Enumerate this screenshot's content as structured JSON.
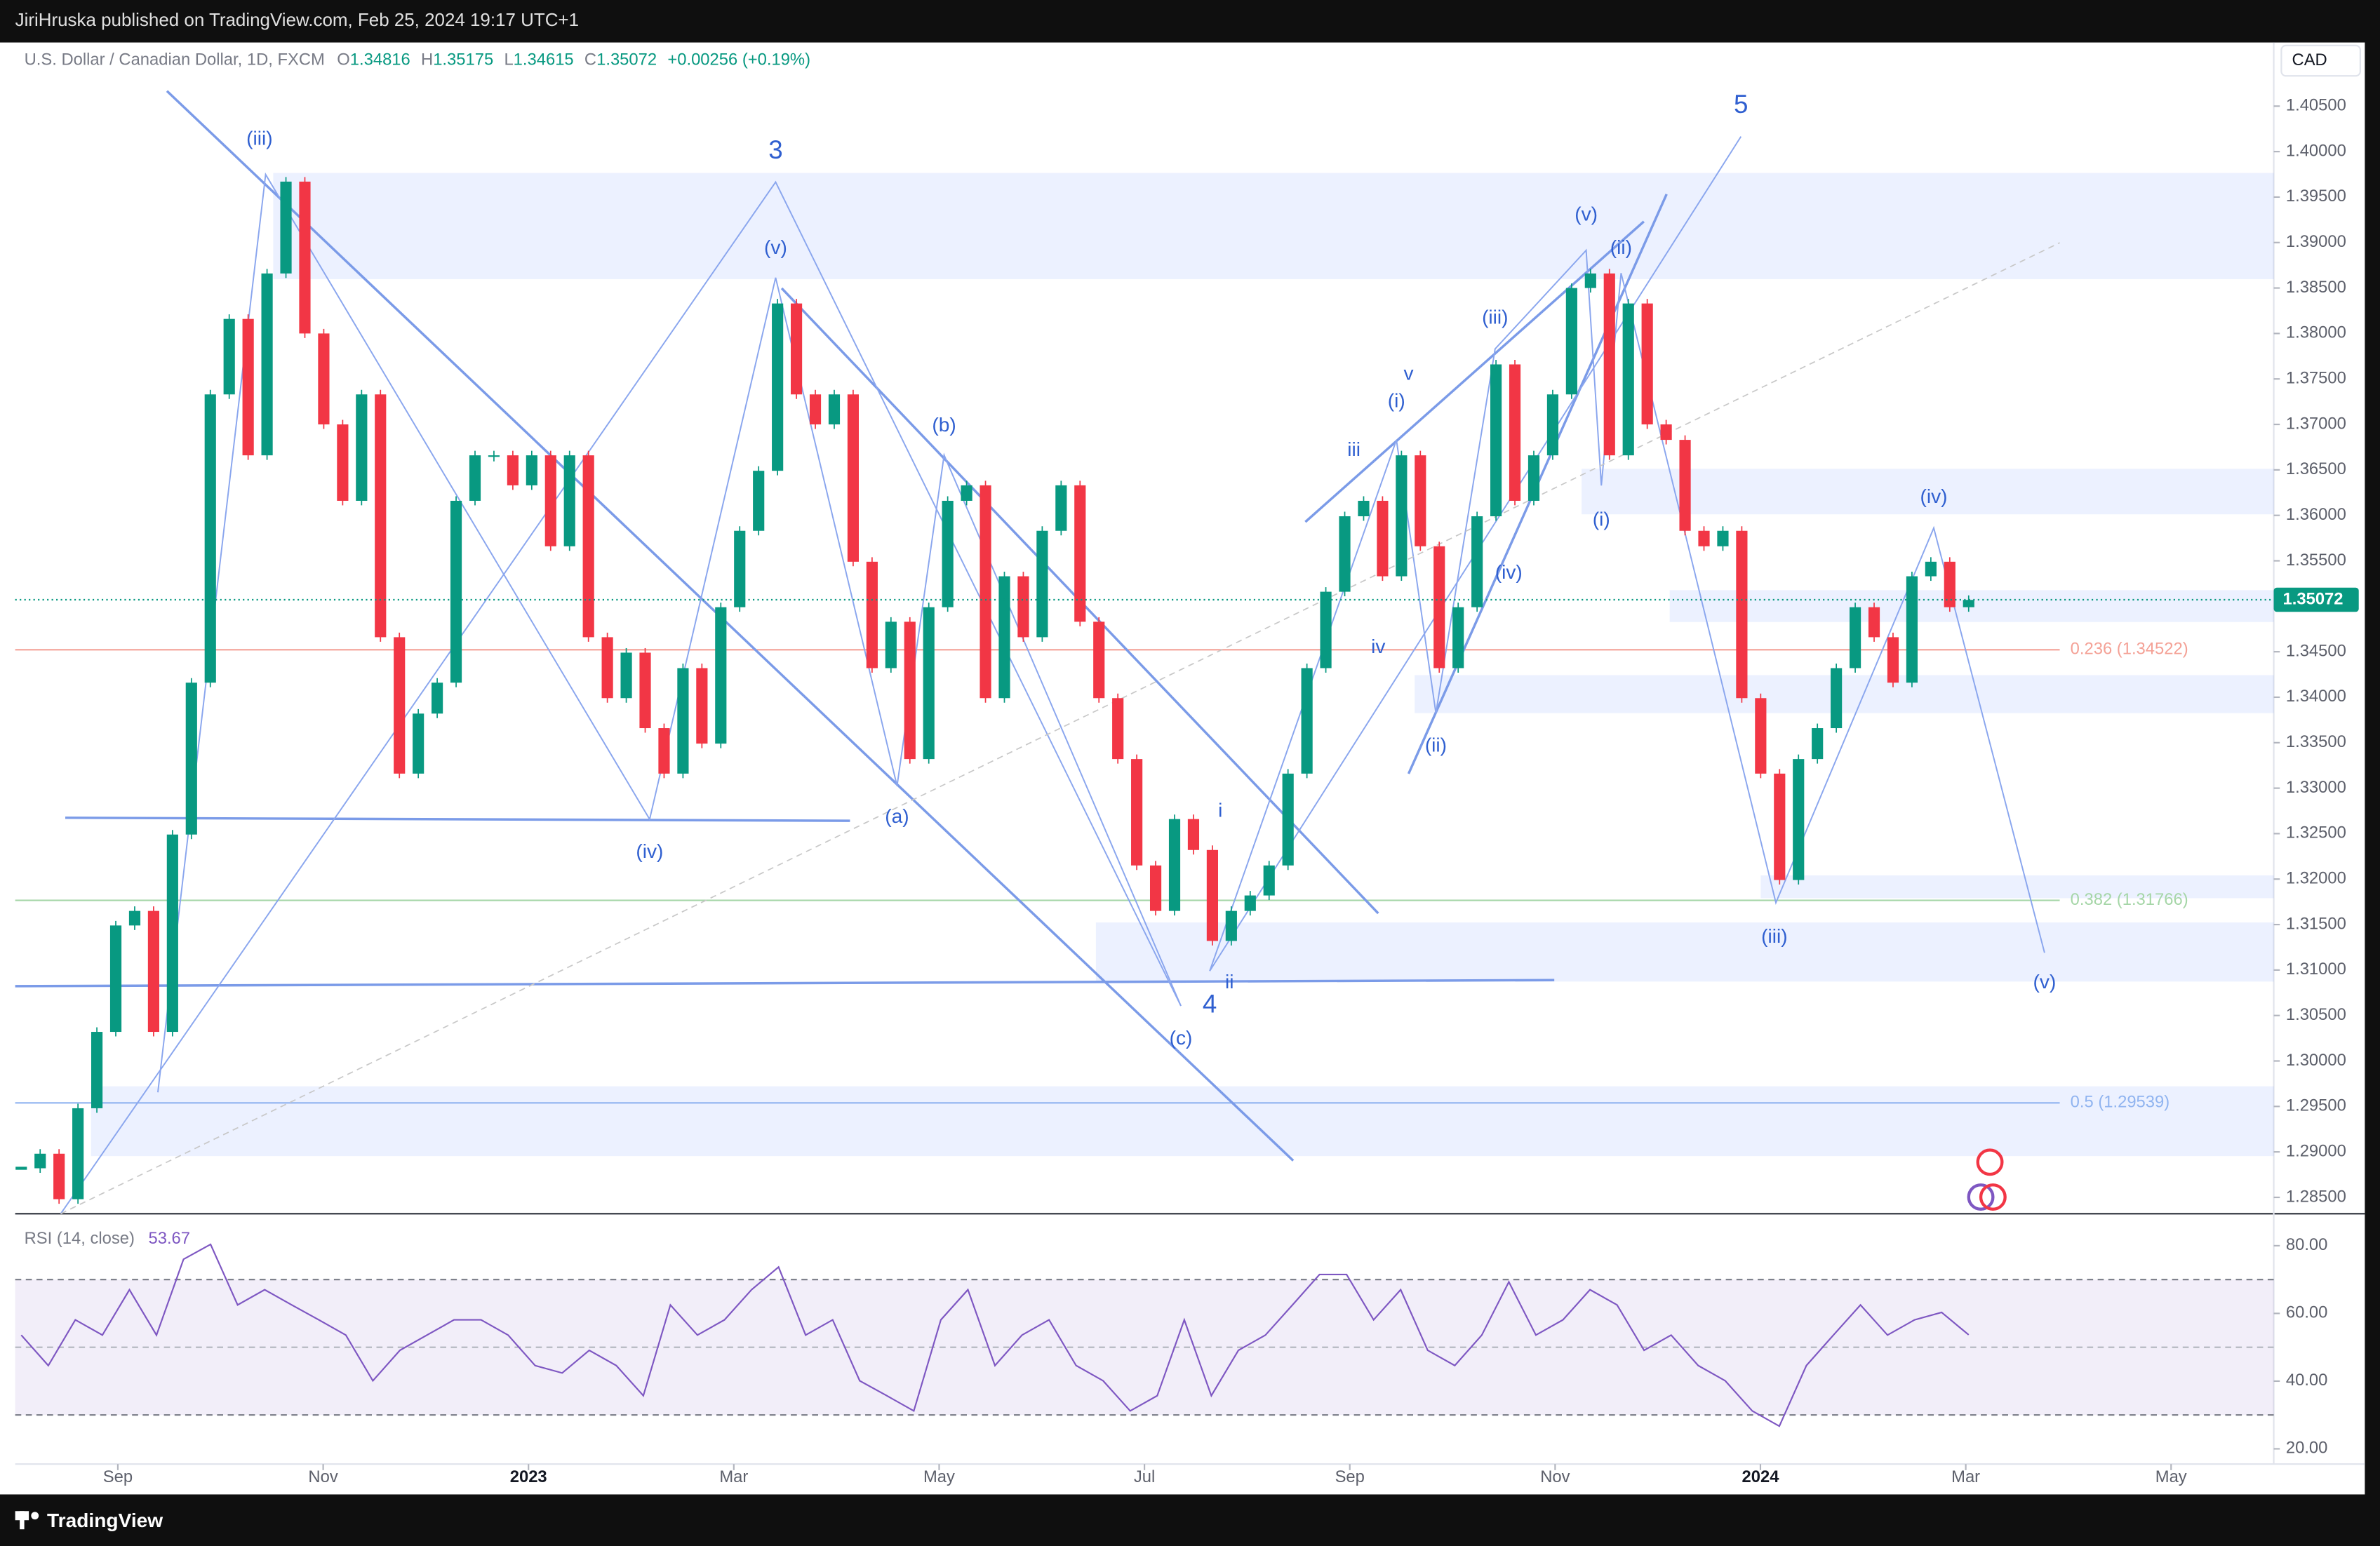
{
  "header": {
    "text": "JiriHruska published on TradingView.com, Feb 25, 2024 19:17 UTC+1"
  },
  "footer": {
    "brand": "TradingView"
  },
  "chart_data": {
    "type": "candlestick",
    "title": "U.S. Dollar / Canadian Dollar, 1D, FXCM",
    "ohlc_labels": [
      "O",
      "H",
      "L",
      "C"
    ],
    "ohlc": [
      1.34816,
      1.35175,
      1.34615,
      1.35072
    ],
    "change": "+0.00256 (+0.19%)",
    "currency": "CAD",
    "last_price": 1.35072,
    "up_color": "#089981",
    "down_color": "#f23645",
    "closes": [
      1.2882,
      1.2898,
      1.2848,
      1.2948,
      1.3032,
      1.3149,
      1.3165,
      1.3032,
      1.3249,
      1.3416,
      1.3733,
      1.3816,
      1.3666,
      1.3866,
      1.3967,
      1.38,
      1.37,
      1.3616,
      1.3733,
      1.3466,
      1.3316,
      1.3382,
      1.3416,
      1.3616,
      1.3666,
      1.3666,
      1.3633,
      1.3666,
      1.3566,
      1.3666,
      1.3466,
      1.3399,
      1.3449,
      1.3366,
      1.3316,
      1.3432,
      1.3349,
      1.3499,
      1.3583,
      1.3649,
      1.3833,
      1.3733,
      1.37,
      1.3733,
      1.3549,
      1.3432,
      1.3483,
      1.3332,
      1.3499,
      1.3616,
      1.3633,
      1.3399,
      1.3533,
      1.3466,
      1.3583,
      1.3633,
      1.3483,
      1.3399,
      1.3332,
      1.3215,
      1.3165,
      1.3266,
      1.3232,
      1.3132,
      1.3165,
      1.3182,
      1.3215,
      1.3316,
      1.3432,
      1.3516,
      1.3599,
      1.3616,
      1.3533,
      1.3666,
      1.3566,
      1.3432,
      1.3499,
      1.3599,
      1.3766,
      1.3616,
      1.3666,
      1.3733,
      1.385,
      1.3866,
      1.3666,
      1.3833,
      1.37,
      1.3683,
      1.3583,
      1.3566,
      1.3583,
      1.3399,
      1.3316,
      1.3199,
      1.3332,
      1.3366,
      1.3432,
      1.3499,
      1.3466,
      1.3416,
      1.3533,
      1.3549,
      1.3499,
      1.3507
    ],
    "ylim": [
      1.2832,
      1.412
    ],
    "yticks": [
      {
        "value": 1.285,
        "label": "1.28500"
      },
      {
        "value": 1.29,
        "label": "1.29000"
      },
      {
        "value": 1.295,
        "label": "1.29500"
      },
      {
        "value": 1.3,
        "label": "1.30000"
      },
      {
        "value": 1.305,
        "label": "1.30500"
      },
      {
        "value": 1.31,
        "label": "1.31000"
      },
      {
        "value": 1.315,
        "label": "1.31500"
      },
      {
        "value": 1.32,
        "label": "1.32000"
      },
      {
        "value": 1.325,
        "label": "1.32500"
      },
      {
        "value": 1.33,
        "label": "1.33000"
      },
      {
        "value": 1.335,
        "label": "1.33500"
      },
      {
        "value": 1.34,
        "label": "1.34000"
      },
      {
        "value": 1.345,
        "label": "1.34500"
      },
      {
        "value": 1.35,
        "label": "1.35000"
      },
      {
        "value": 1.355,
        "label": "1.35500"
      },
      {
        "value": 1.36,
        "label": "1.36000"
      },
      {
        "value": 1.365,
        "label": "1.36500"
      },
      {
        "value": 1.37,
        "label": "1.37000"
      },
      {
        "value": 1.375,
        "label": "1.37500"
      },
      {
        "value": 1.38,
        "label": "1.38000"
      },
      {
        "value": 1.385,
        "label": "1.38500"
      },
      {
        "value": 1.39,
        "label": "1.39000"
      },
      {
        "value": 1.395,
        "label": "1.39500"
      },
      {
        "value": 1.4,
        "label": "1.40000"
      },
      {
        "value": 1.405,
        "label": "1.40500"
      }
    ],
    "xlim": [
      "2022-08",
      "2024-06"
    ],
    "xticks": [
      {
        "value": "2022-09",
        "label": "Sep"
      },
      {
        "value": "2022-11",
        "label": "Nov"
      },
      {
        "value": "2023-01",
        "label": "2023"
      },
      {
        "value": "2023-03",
        "label": "Mar"
      },
      {
        "value": "2023-05",
        "label": "May"
      },
      {
        "value": "2023-07",
        "label": "Jul"
      },
      {
        "value": "2023-09",
        "label": "Sep"
      },
      {
        "value": "2023-11",
        "label": "Nov"
      },
      {
        "value": "2024-01",
        "label": "2024"
      },
      {
        "value": "2024-03",
        "label": "Mar"
      },
      {
        "value": "2024-05",
        "label": "May"
      }
    ],
    "annotations": [
      "(iii)",
      "3",
      "(v)",
      "5",
      "(v)",
      "(ii)",
      "(iii)",
      "v",
      "(i)",
      "iii",
      "(b)",
      "(i)",
      "(iv)",
      "(iv)",
      "iv",
      "(ii)",
      "(iv)",
      "(a)",
      "i",
      "ii",
      "4",
      "(c)",
      "(iii)",
      "(v)"
    ],
    "fib_levels": [
      {
        "label": "0.236 (1.34522)",
        "value": 1.34522,
        "color": "#f4a196"
      },
      {
        "label": "0.382 (1.31766)",
        "value": 1.31766,
        "color": "#a5d6a7"
      },
      {
        "label": "0.5 (1.29539)",
        "value": 1.29539,
        "color": "#90b4f0"
      }
    ],
    "rsi": {
      "title": "RSI (14, close)",
      "last": 53.67,
      "color": "#7e57c2",
      "values": [
        53.6,
        44.6,
        58.1,
        53.6,
        67.0,
        53.6,
        76.0,
        80.4,
        62.5,
        67.0,
        62.5,
        58.1,
        53.6,
        40.1,
        49.1,
        53.6,
        58.1,
        58.1,
        53.6,
        44.6,
        42.4,
        49.1,
        44.6,
        35.7,
        62.5,
        53.6,
        58.1,
        67.0,
        73.7,
        53.6,
        58.1,
        40.1,
        35.7,
        31.2,
        58.1,
        67.0,
        44.6,
        53.6,
        58.1,
        44.6,
        40.1,
        31.2,
        35.7,
        58.1,
        35.7,
        49.1,
        53.6,
        62.5,
        71.5,
        71.5,
        58.1,
        67.0,
        49.1,
        44.6,
        53.6,
        69.3,
        53.6,
        58.1,
        67.0,
        62.5,
        49.1,
        53.6,
        44.6,
        40.1,
        31.2,
        26.7,
        44.6,
        53.6,
        62.5,
        53.6,
        58.1,
        60.3,
        53.67
      ],
      "ylim": [
        15.5,
        87.2
      ],
      "yticks": [
        {
          "value": 20,
          "label": "20.00"
        },
        {
          "value": 40,
          "label": "40.00"
        },
        {
          "value": 60,
          "label": "60.00"
        },
        {
          "value": 80,
          "label": "80.00"
        }
      ],
      "band": [
        30,
        70
      ],
      "midline": 50
    }
  }
}
